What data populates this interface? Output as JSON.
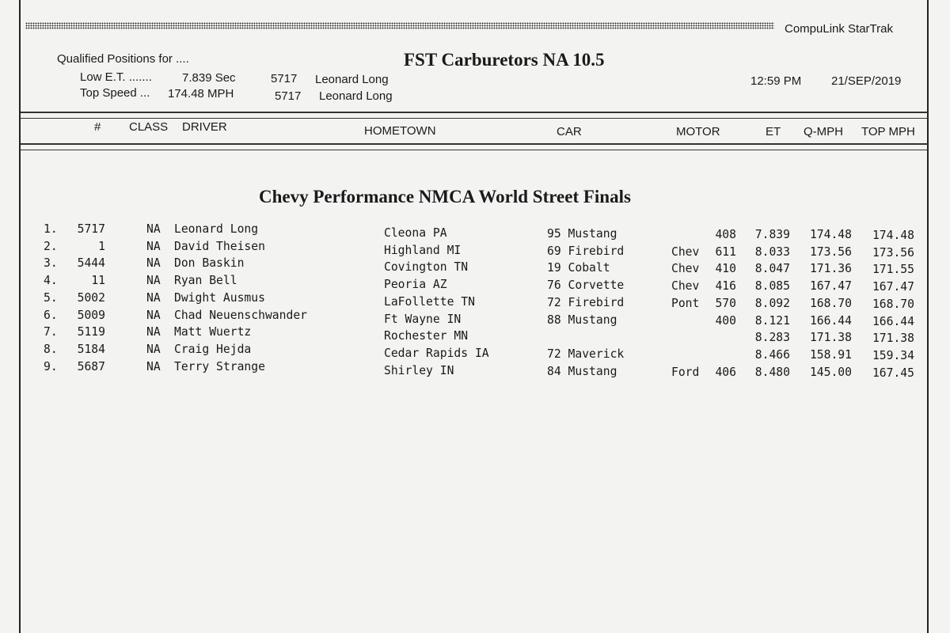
{
  "header": {
    "system": "CompuLink  StarTrak",
    "qualified_label": "Qualified Positions for ....",
    "low_et_label": "Low E.T. .......",
    "low_et_value": "7.839  Sec",
    "low_et_car": "5717",
    "low_et_driver": "Leonard Long",
    "top_speed_label": "Top Speed ...",
    "top_speed_value": "174.48  MPH",
    "top_speed_car": "5717",
    "top_speed_driver": "Leonard Long",
    "class_title": "FST Carburetors NA 10.5",
    "time": "12:59 PM",
    "date": "21/SEP/2019"
  },
  "columns": [
    "#",
    "CLASS",
    "DRIVER",
    "HOMETOWN",
    "CAR",
    "MOTOR",
    "ET",
    "Q-MPH",
    "TOP MPH"
  ],
  "event_title": "Chevy Performance NMCA World Street Finals",
  "rows": [
    {
      "pos": "1.",
      "num": "5717",
      "cls": "NA",
      "driver": "Leonard Long",
      "hometown": "Cleona PA",
      "car": "95 Mustang",
      "make": "",
      "cid": "408",
      "et": "7.839",
      "qmph": "174.48",
      "topmph": "174.48"
    },
    {
      "pos": "2.",
      "num": "1",
      "cls": "NA",
      "driver": "David Theisen",
      "hometown": "Highland MI",
      "car": "69 Firebird",
      "make": "Chev",
      "cid": "611",
      "et": "8.033",
      "qmph": "173.56",
      "topmph": "173.56"
    },
    {
      "pos": "3.",
      "num": "5444",
      "cls": "NA",
      "driver": "Don Baskin",
      "hometown": "Covington TN",
      "car": "19 Cobalt",
      "make": "Chev",
      "cid": "410",
      "et": "8.047",
      "qmph": "171.36",
      "topmph": "171.55"
    },
    {
      "pos": "4.",
      "num": "11",
      "cls": "NA",
      "driver": "Ryan Bell",
      "hometown": "Peoria AZ",
      "car": "76 Corvette",
      "make": "Chev",
      "cid": "416",
      "et": "8.085",
      "qmph": "167.47",
      "topmph": "167.47"
    },
    {
      "pos": "5.",
      "num": "5002",
      "cls": "NA",
      "driver": "Dwight Ausmus",
      "hometown": "LaFollette TN",
      "car": "72 Firebird",
      "make": "Pont",
      "cid": "570",
      "et": "8.092",
      "qmph": "168.70",
      "topmph": "168.70"
    },
    {
      "pos": "6.",
      "num": "5009",
      "cls": "NA",
      "driver": "Chad Neuenschwander",
      "hometown": "Ft Wayne IN",
      "car": "88 Mustang",
      "make": "",
      "cid": "400",
      "et": "8.121",
      "qmph": "166.44",
      "topmph": "166.44"
    },
    {
      "pos": "7.",
      "num": "5119",
      "cls": "NA",
      "driver": "Matt Wuertz",
      "hometown": "Rochester MN",
      "car": "",
      "make": "",
      "cid": "",
      "et": "8.283",
      "qmph": "171.38",
      "topmph": "171.38"
    },
    {
      "pos": "8.",
      "num": "5184",
      "cls": "NA",
      "driver": "Craig Hejda",
      "hometown": "Cedar Rapids IA",
      "car": "72 Maverick",
      "make": "",
      "cid": "",
      "et": "8.466",
      "qmph": "158.91",
      "topmph": "159.34"
    },
    {
      "pos": "9.",
      "num": "5687",
      "cls": "NA",
      "driver": "Terry Strange",
      "hometown": "Shirley IN",
      "car": "84 Mustang",
      "make": "Ford",
      "cid": "406",
      "et": "8.480",
      "qmph": "145.00",
      "topmph": "167.45"
    }
  ]
}
